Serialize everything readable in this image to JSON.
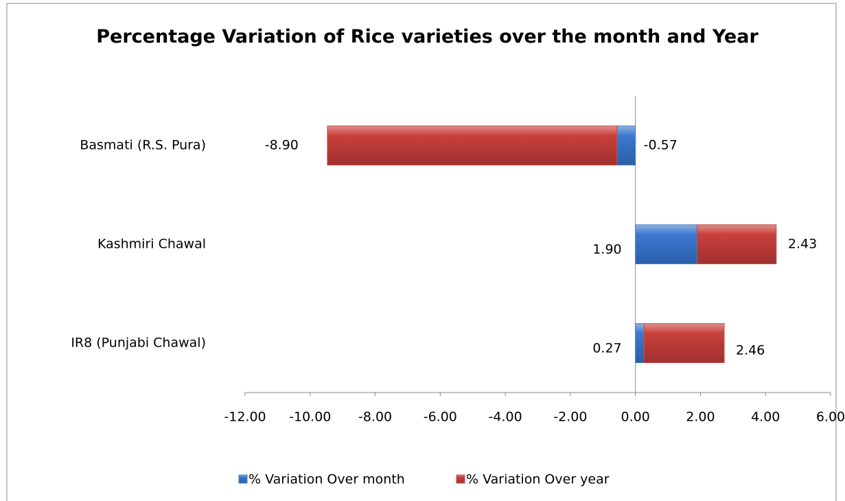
{
  "chart_data": {
    "type": "bar",
    "orientation": "horizontal",
    "stacked": true,
    "title": "Percentage Variation of Rice varieties over the month and Year",
    "categories": [
      "Basmati (R.S. Pura)",
      "Kashmiri Chawal",
      "IR8 (Punjabi Chawal)"
    ],
    "series": [
      {
        "name": "% Variation Over month",
        "color": "#4f81bd",
        "values": [
          -0.57,
          1.9,
          0.27
        ],
        "value_labels": [
          "-0.57",
          "1.90",
          "0.27"
        ]
      },
      {
        "name": "% Variation Over year",
        "color": "#c0504d",
        "values": [
          -8.9,
          2.43,
          2.46
        ],
        "value_labels": [
          "-8.90",
          "2.43",
          "2.46"
        ]
      }
    ],
    "xlim": [
      -12,
      6
    ],
    "xticks": [
      {
        "value": -12,
        "label": "-12.00"
      },
      {
        "value": -10,
        "label": "-10.00"
      },
      {
        "value": -8,
        "label": "-8.00"
      },
      {
        "value": -6,
        "label": "-6.00"
      },
      {
        "value": -4,
        "label": "-4.00"
      },
      {
        "value": -2,
        "label": "-2.00"
      },
      {
        "value": 0,
        "label": "0.00"
      },
      {
        "value": 2,
        "label": "2.00"
      },
      {
        "value": 4,
        "label": "4.00"
      },
      {
        "value": 6,
        "label": "6.00"
      }
    ],
    "grid": false,
    "legend": "bottom"
  }
}
